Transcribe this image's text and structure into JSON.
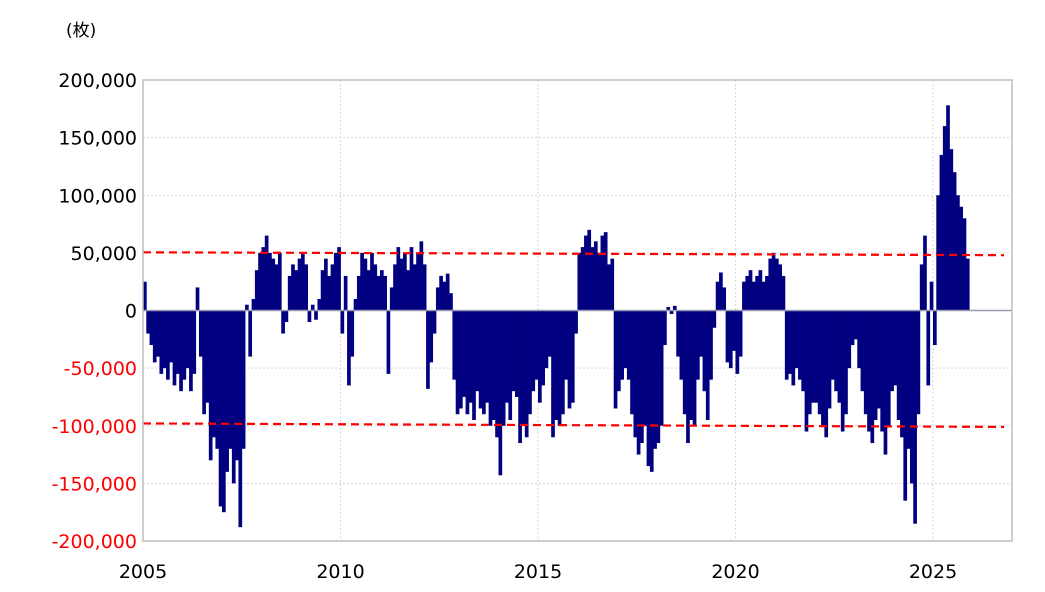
{
  "chart_data": {
    "type": "bar",
    "unit_label": "(枚)",
    "xlabel": "",
    "ylabel": "",
    "xlim": [
      2005,
      2027
    ],
    "ylim": [
      -200000,
      200000
    ],
    "x_ticks": [
      "2005",
      "2010",
      "2015",
      "2020",
      "2025"
    ],
    "y_ticks": [
      "200,000",
      "150,000",
      "100,000",
      "50,000",
      "0",
      "-50,000",
      "-100,000",
      "-150,000",
      "-200,000"
    ],
    "grid": true,
    "bar_color": "#000080",
    "negative_tick_color": "#ff0000",
    "reference_line_color": "#ff0000",
    "reference_lines": [
      {
        "style": "dashed",
        "from": [
          2005,
          50500
        ],
        "to": [
          2026.8,
          48000
        ]
      },
      {
        "style": "dashed",
        "from": [
          2005,
          -98000
        ],
        "to": [
          2026.8,
          -101000
        ]
      }
    ],
    "frequency": "monthly",
    "start": "2005-01",
    "values_by_year": {
      "2005": [
        25000,
        -20000,
        -30000,
        -45000,
        -40000,
        -55000,
        -50000,
        -60000,
        -45000,
        -65000,
        -55000,
        -70000
      ],
      "2006": [
        -60000,
        -50000,
        -70000,
        -55000,
        20000,
        -40000,
        -90000,
        -80000,
        -130000,
        -110000,
        -120000,
        -170000
      ],
      "2007": [
        -175000,
        -140000,
        -120000,
        -150000,
        -130000,
        -188000,
        -120000,
        5000,
        -40000,
        10000,
        35000,
        50000
      ],
      "2008": [
        55000,
        65000,
        50000,
        45000,
        40000,
        50000,
        -20000,
        -10000,
        30000,
        40000,
        35000,
        45000
      ],
      "2009": [
        50000,
        40000,
        -10000,
        5000,
        -8000,
        10000,
        35000,
        45000,
        30000,
        40000,
        50000,
        55000
      ],
      "2010": [
        -20000,
        30000,
        -65000,
        -40000,
        10000,
        30000,
        50000,
        45000,
        35000,
        50000,
        40000,
        30000
      ],
      "2011": [
        35000,
        30000,
        -55000,
        20000,
        40000,
        55000,
        45000,
        50000,
        35000,
        55000,
        40000,
        50000
      ],
      "2012": [
        60000,
        40000,
        -68000,
        -45000,
        -20000,
        20000,
        30000,
        25000,
        32000,
        15000,
        -60000,
        -90000
      ],
      "2013": [
        -85000,
        -75000,
        -90000,
        -80000,
        -95000,
        -70000,
        -85000,
        -90000,
        -80000,
        -100000,
        -95000,
        -110000
      ],
      "2014": [
        -143000,
        -100000,
        -80000,
        -95000,
        -70000,
        -75000,
        -115000,
        -100000,
        -110000,
        -90000,
        -70000,
        -60000
      ],
      "2015": [
        -80000,
        -65000,
        -50000,
        -40000,
        -110000,
        -95000,
        -100000,
        -90000,
        -60000,
        -85000,
        -80000,
        -20000
      ],
      "2016": [
        50000,
        55000,
        65000,
        70000,
        55000,
        60000,
        50000,
        65000,
        68000,
        40000,
        45000,
        -85000
      ],
      "2017": [
        -70000,
        -60000,
        -50000,
        -60000,
        -90000,
        -110000,
        -125000,
        -115000,
        -100000,
        -135000,
        -140000,
        -120000
      ],
      "2018": [
        -115000,
        -100000,
        -30000,
        3000,
        -3000,
        4000,
        -40000,
        -60000,
        -90000,
        -115000,
        -95000,
        -100000
      ],
      "2019": [
        -60000,
        -40000,
        -70000,
        -95000,
        -60000,
        -15000,
        25000,
        33000,
        20000,
        -45000,
        -50000,
        -35000
      ],
      "2020": [
        -55000,
        -40000,
        25000,
        30000,
        35000,
        25000,
        30000,
        35000,
        25000,
        30000,
        45000,
        50000
      ],
      "2021": [
        45000,
        40000,
        30000,
        -60000,
        -55000,
        -65000,
        -50000,
        -60000,
        -70000,
        -105000,
        -90000,
        -80000
      ],
      "2022": [
        -80000,
        -90000,
        -100000,
        -110000,
        -85000,
        -60000,
        -70000,
        -80000,
        -105000,
        -90000,
        -50000,
        -30000
      ],
      "2023": [
        -25000,
        -50000,
        -70000,
        -90000,
        -105000,
        -115000,
        -95000,
        -85000,
        -105000,
        -125000,
        -100000,
        -70000
      ],
      "2024": [
        -65000,
        -95000,
        -110000,
        -165000,
        -120000,
        -150000,
        -185000,
        -90000,
        40000,
        65000,
        -65000,
        25000
      ],
      "2025": [
        -30000,
        100000,
        135000,
        160000,
        178000,
        140000,
        120000,
        100000,
        90000,
        80000,
        45000
      ]
    }
  }
}
